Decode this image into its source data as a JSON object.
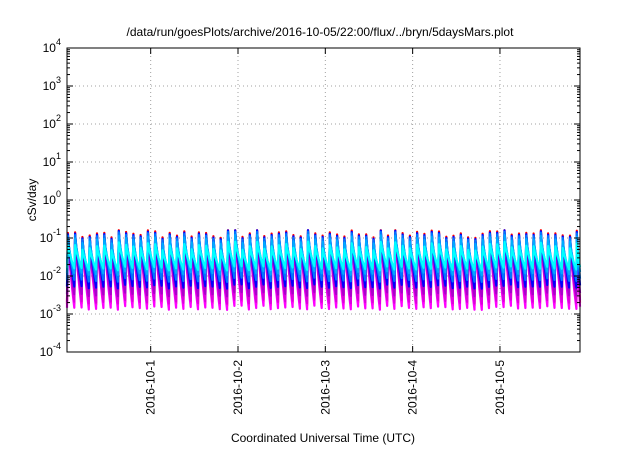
{
  "chart_data": {
    "type": "line",
    "title": "/data/run/goesPlots/archive/2016-10-05/22:00/flux/../bryn/5daysMars.plot",
    "xlabel": "Coordinated Universal Time (UTC)",
    "ylabel": "cSv/day",
    "x_range": [
      "2016-09-30T01:00",
      "2016-10-05T22:00"
    ],
    "x_ticks": [
      "2016-10-1",
      "2016-10-2",
      "2016-10-3",
      "2016-10-4",
      "2016-10-5"
    ],
    "y_scale": "log",
    "ylim": [
      0.0001,
      10000
    ],
    "y_ticks": [
      {
        "base": "10",
        "exp": "-4",
        "value": 0.0001
      },
      {
        "base": "10",
        "exp": "-3",
        "value": 0.001
      },
      {
        "base": "10",
        "exp": "-2",
        "value": 0.01
      },
      {
        "base": "10",
        "exp": "-1",
        "value": 0.1
      },
      {
        "base": "10",
        "exp": "0",
        "value": 1
      },
      {
        "base": "10",
        "exp": "1",
        "value": 10
      },
      {
        "base": "10",
        "exp": "2",
        "value": 100
      },
      {
        "base": "10",
        "exp": "3",
        "value": 1000
      },
      {
        "base": "10",
        "exp": "4",
        "value": 10000
      }
    ],
    "grid": true,
    "legend": "none",
    "series_pattern": {
      "cycle_hours": 2,
      "peak_value": 0.12,
      "min_value_by_series": [
        0.0012,
        0.0018,
        0.0025,
        0.0035,
        0.005,
        0.007,
        0.009,
        0.012
      ]
    },
    "series": [
      {
        "color": "#ff0000",
        "peak": 0.13,
        "trough": 0.0014
      },
      {
        "color": "#ff00ff",
        "peak": 0.1,
        "trough": 0.0011
      },
      {
        "color": "#dd00dd",
        "peak": 0.09,
        "trough": 0.0016
      },
      {
        "color": "#aa00cc",
        "peak": 0.085,
        "trough": 0.0025
      },
      {
        "color": "#0000ff",
        "peak": 0.12,
        "trough": 0.004
      },
      {
        "color": "#0077ff",
        "peak": 0.11,
        "trough": 0.006
      },
      {
        "color": "#00aaff",
        "peak": 0.09,
        "trough": 0.009
      },
      {
        "color": "#00ffff",
        "peak": 0.06,
        "trough": 0.012
      }
    ],
    "colors": {
      "axis": "#000000",
      "grid": "#a0a0a0",
      "background": "#ffffff"
    }
  }
}
